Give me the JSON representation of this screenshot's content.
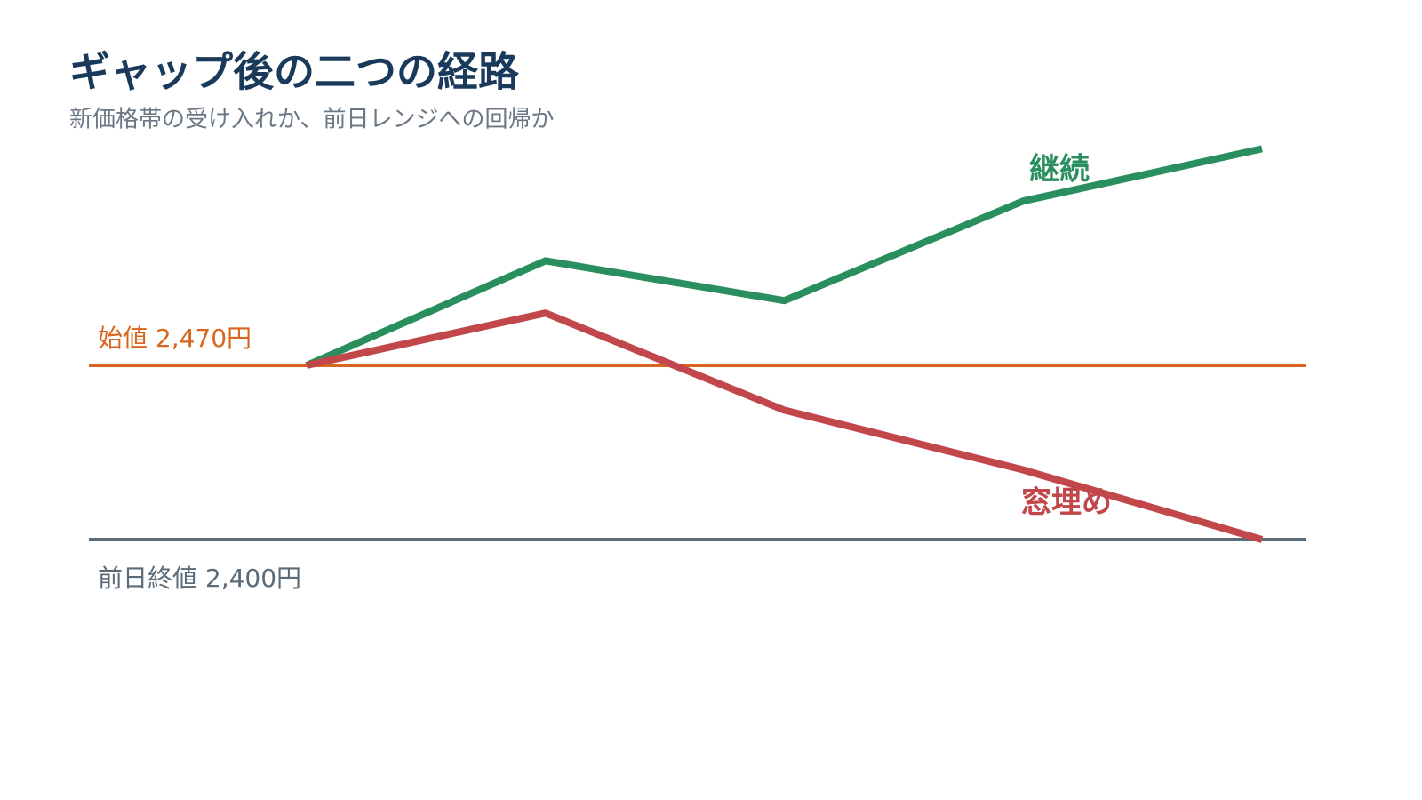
{
  "chart_data": {
    "type": "line",
    "title": "ギャップ後の二つの経路",
    "subtitle": "新価格帯の受け入れか、前日レンジへの回帰か",
    "categories": [
      null,
      null,
      null,
      null,
      null
    ],
    "series": [
      {
        "name": "継続",
        "color": "#2a8f5f",
        "values": [
          2470,
          2512,
          2496,
          2536,
          2557
        ]
      },
      {
        "name": "窓埋め",
        "color": "#c2474a",
        "values": [
          2470,
          2491,
          2452,
          2428,
          2400
        ]
      }
    ],
    "reference_lines": [
      {
        "label": "始値 2,470円",
        "value": 2470,
        "color": "#d9661f"
      },
      {
        "label": "前日終値 2,400円",
        "value": 2400,
        "color": "#5a6b7a"
      }
    ]
  }
}
